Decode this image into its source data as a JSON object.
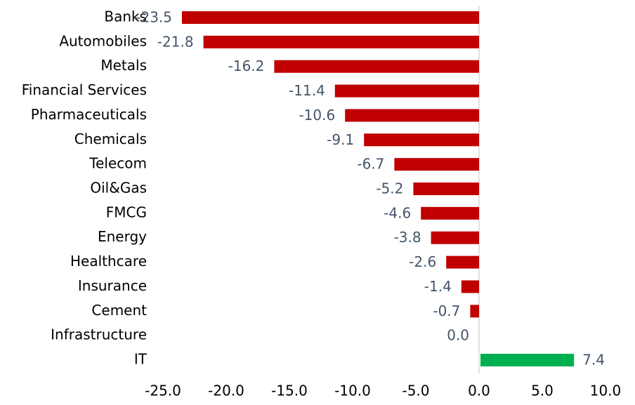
{
  "chart_data": {
    "type": "hbar",
    "categories": [
      "Banks",
      "Automobiles",
      "Metals",
      "Financial Services",
      "Pharmaceuticals",
      "Chemicals",
      "Telecom",
      "Oil&Gas",
      "FMCG",
      "Energy",
      "Healthcare",
      "Insurance",
      "Cement",
      "Infrastructure",
      "IT"
    ],
    "values": [
      -23.5,
      -21.8,
      -16.2,
      -11.4,
      -10.6,
      -9.1,
      -6.7,
      -5.2,
      -4.6,
      -3.8,
      -2.6,
      -1.4,
      -0.7,
      0,
      7.4
    ],
    "value_labels": [
      "-23.5",
      "-21.8",
      "-16.2",
      "-11.4",
      "-10.6",
      "-9.1",
      "-6.7",
      "-5.2",
      "-4.6",
      "-3.8",
      "-2.6",
      "-1.4",
      "-0.7",
      "0.0",
      "7.4"
    ],
    "negative_color": "#c00000",
    "positive_color": "#00b050",
    "xlim": [
      -25,
      10
    ],
    "xticks": [
      {
        "value": -25,
        "label": "-25.0"
      },
      {
        "value": -20,
        "label": "-20.0"
      },
      {
        "value": -15,
        "label": "-15.0"
      },
      {
        "value": -10,
        "label": "-10.0"
      },
      {
        "value": -5,
        "label": "-5.0"
      },
      {
        "value": 0,
        "label": "0.0"
      },
      {
        "value": 5,
        "label": "5.0"
      },
      {
        "value": 10,
        "label": "10.0"
      }
    ],
    "grid": false
  }
}
